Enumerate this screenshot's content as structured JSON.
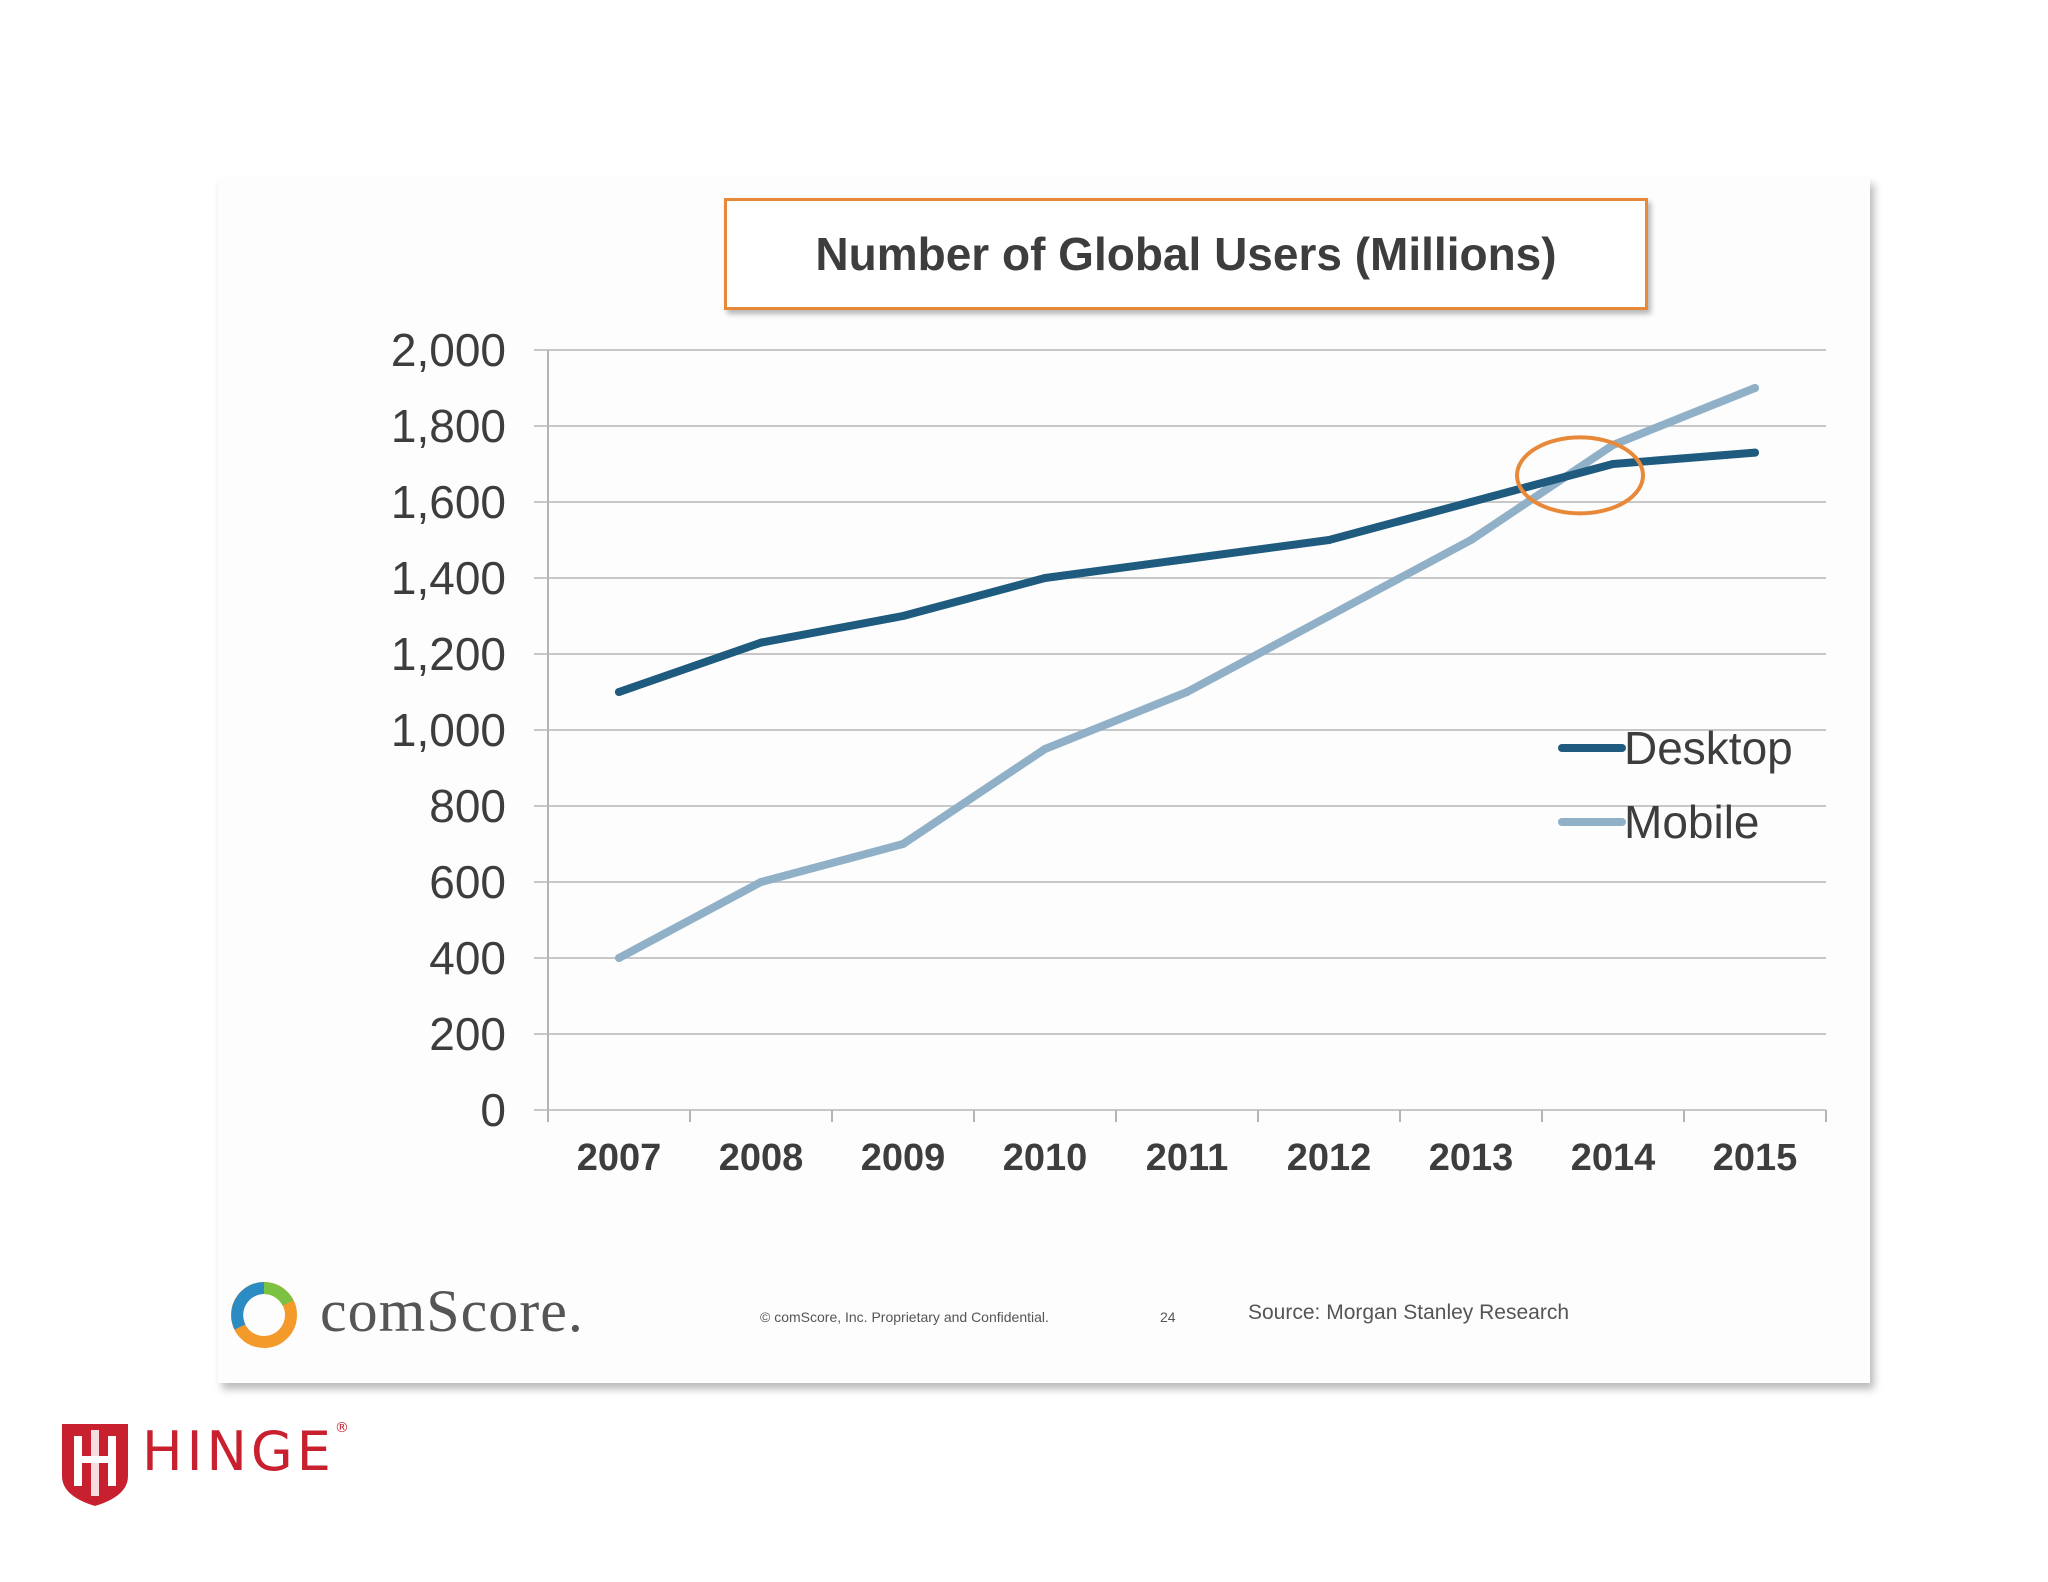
{
  "chart_data": {
    "type": "line",
    "title": "Number of Global Users (Millions)",
    "xlabel": "",
    "ylabel": "",
    "categories": [
      "2007",
      "2008",
      "2009",
      "2010",
      "2011",
      "2012",
      "2013",
      "2014",
      "2015"
    ],
    "series": [
      {
        "name": "Desktop",
        "color": "#1e5b7e",
        "values": [
          1100,
          1230,
          1300,
          1400,
          1450,
          1500,
          1600,
          1700,
          1730
        ]
      },
      {
        "name": "Mobile",
        "color": "#8fb0c7",
        "values": [
          400,
          600,
          700,
          950,
          1100,
          1300,
          1500,
          1750,
          1900
        ]
      }
    ],
    "ylim": [
      0,
      2000
    ],
    "yticks": [
      0,
      200,
      400,
      600,
      800,
      1000,
      1200,
      1400,
      1600,
      1800,
      2000
    ],
    "ytick_labels": [
      "0",
      "200",
      "400",
      "600",
      "800",
      "1,000",
      "1,200",
      "1,400",
      "1,600",
      "1,800",
      "2,000"
    ],
    "grid": true,
    "legend_position": "right",
    "annotation": {
      "type": "ellipse-highlight",
      "x": "2014",
      "y": 1670,
      "color": "#e8893a"
    }
  },
  "footer": {
    "brand": "comScore.",
    "copyright": "© comScore, Inc.  Proprietary and Confidential.",
    "page_number": "24",
    "source": "Source: Morgan Stanley Research"
  },
  "watermark": {
    "brand": "HINGE",
    "mark": "®",
    "color": "#c8202f"
  }
}
